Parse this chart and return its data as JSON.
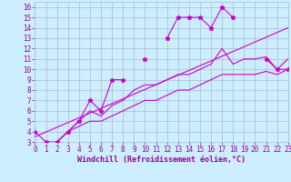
{
  "background_color": "#cceeff",
  "grid_color": "#aabbcc",
  "line_color": "#cc00cc",
  "xlabel": "Windchill (Refroidissement éolien,°C)",
  "xlim": [
    0,
    23
  ],
  "ylim": [
    3,
    16.5
  ],
  "yticks": [
    3,
    4,
    5,
    6,
    7,
    8,
    9,
    10,
    11,
    12,
    13,
    14,
    15,
    16
  ],
  "xticks": [
    0,
    1,
    2,
    3,
    4,
    5,
    6,
    7,
    8,
    9,
    10,
    11,
    12,
    13,
    14,
    15,
    16,
    17,
    18,
    19,
    20,
    21,
    22,
    23
  ],
  "series_marked": {
    "x": [
      0,
      1,
      2,
      3,
      4,
      5,
      6,
      7,
      8,
      9,
      10,
      11,
      12,
      13,
      14,
      15,
      16,
      17,
      18,
      19,
      20,
      21,
      22,
      23
    ],
    "y": [
      4,
      3,
      3,
      4,
      5,
      7,
      6,
      9,
      9,
      null,
      11,
      null,
      13,
      15,
      15,
      15,
      14,
      16,
      15,
      null,
      null,
      11,
      10,
      10
    ]
  },
  "series_upper": {
    "x": [
      2,
      3,
      4,
      5,
      6,
      7,
      8,
      9,
      10,
      11,
      12,
      13,
      14,
      15,
      16,
      17,
      18,
      19,
      20,
      21,
      22,
      23
    ],
    "y": [
      3,
      4,
      5,
      6,
      5.5,
      6.5,
      7,
      8,
      8.5,
      8.5,
      9,
      9.5,
      9.5,
      10,
      10.5,
      12,
      10.5,
      11,
      11,
      11.2,
      10,
      11
    ]
  },
  "series_lower": {
    "x": [
      2,
      3,
      4,
      5,
      6,
      7,
      8,
      9,
      10,
      11,
      12,
      13,
      14,
      15,
      16,
      17,
      18,
      19,
      20,
      21,
      22,
      23
    ],
    "y": [
      3,
      4,
      4.5,
      5,
      5,
      5.5,
      6,
      6.5,
      7,
      7,
      7.5,
      8,
      8,
      8.5,
      9,
      9.5,
      9.5,
      9.5,
      9.5,
      9.8,
      9.5,
      10
    ]
  },
  "series_straight": {
    "x": [
      0,
      23
    ],
    "y": [
      3.5,
      14
    ]
  }
}
